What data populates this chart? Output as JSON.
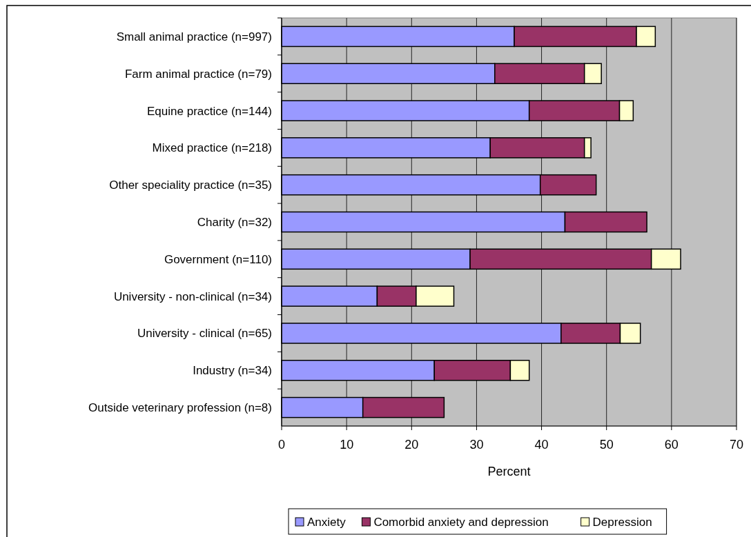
{
  "chart_data": {
    "type": "bar",
    "orientation": "horizontal",
    "stacked": true,
    "categories": [
      "Small animal practice (n=997)",
      "Farm animal practice (n=79)",
      "Equine practice (n=144)",
      "Mixed practice (n=218)",
      "Other speciality practice (n=35)",
      "Charity (n=32)",
      "Government (n=110)",
      "University - non-clinical (n=34)",
      "University - clinical (n=65)",
      "Industry (n=34)",
      "Outside veterinary profession (n=8)"
    ],
    "series": [
      {
        "name": "Anxiety",
        "color": "#9999ff",
        "values": [
          35.8,
          32.8,
          38.1,
          32.1,
          39.8,
          43.6,
          29.0,
          14.7,
          43.0,
          23.5,
          12.5
        ]
      },
      {
        "name": "Comorbid anxiety and depression",
        "color": "#993366",
        "values": [
          18.8,
          13.8,
          13.9,
          14.5,
          8.6,
          12.6,
          27.9,
          6.0,
          9.1,
          11.7,
          12.5
        ]
      },
      {
        "name": "Depression",
        "color": "#ffffcc",
        "values": [
          2.9,
          2.6,
          2.1,
          1.0,
          null,
          null,
          4.5,
          5.8,
          3.1,
          2.9,
          null
        ]
      }
    ],
    "xlim": [
      0,
      70
    ],
    "xticks": [
      0,
      10,
      20,
      30,
      40,
      50,
      60,
      70
    ],
    "xlabel": "Percent",
    "grid": "x",
    "legend": "bottom"
  }
}
